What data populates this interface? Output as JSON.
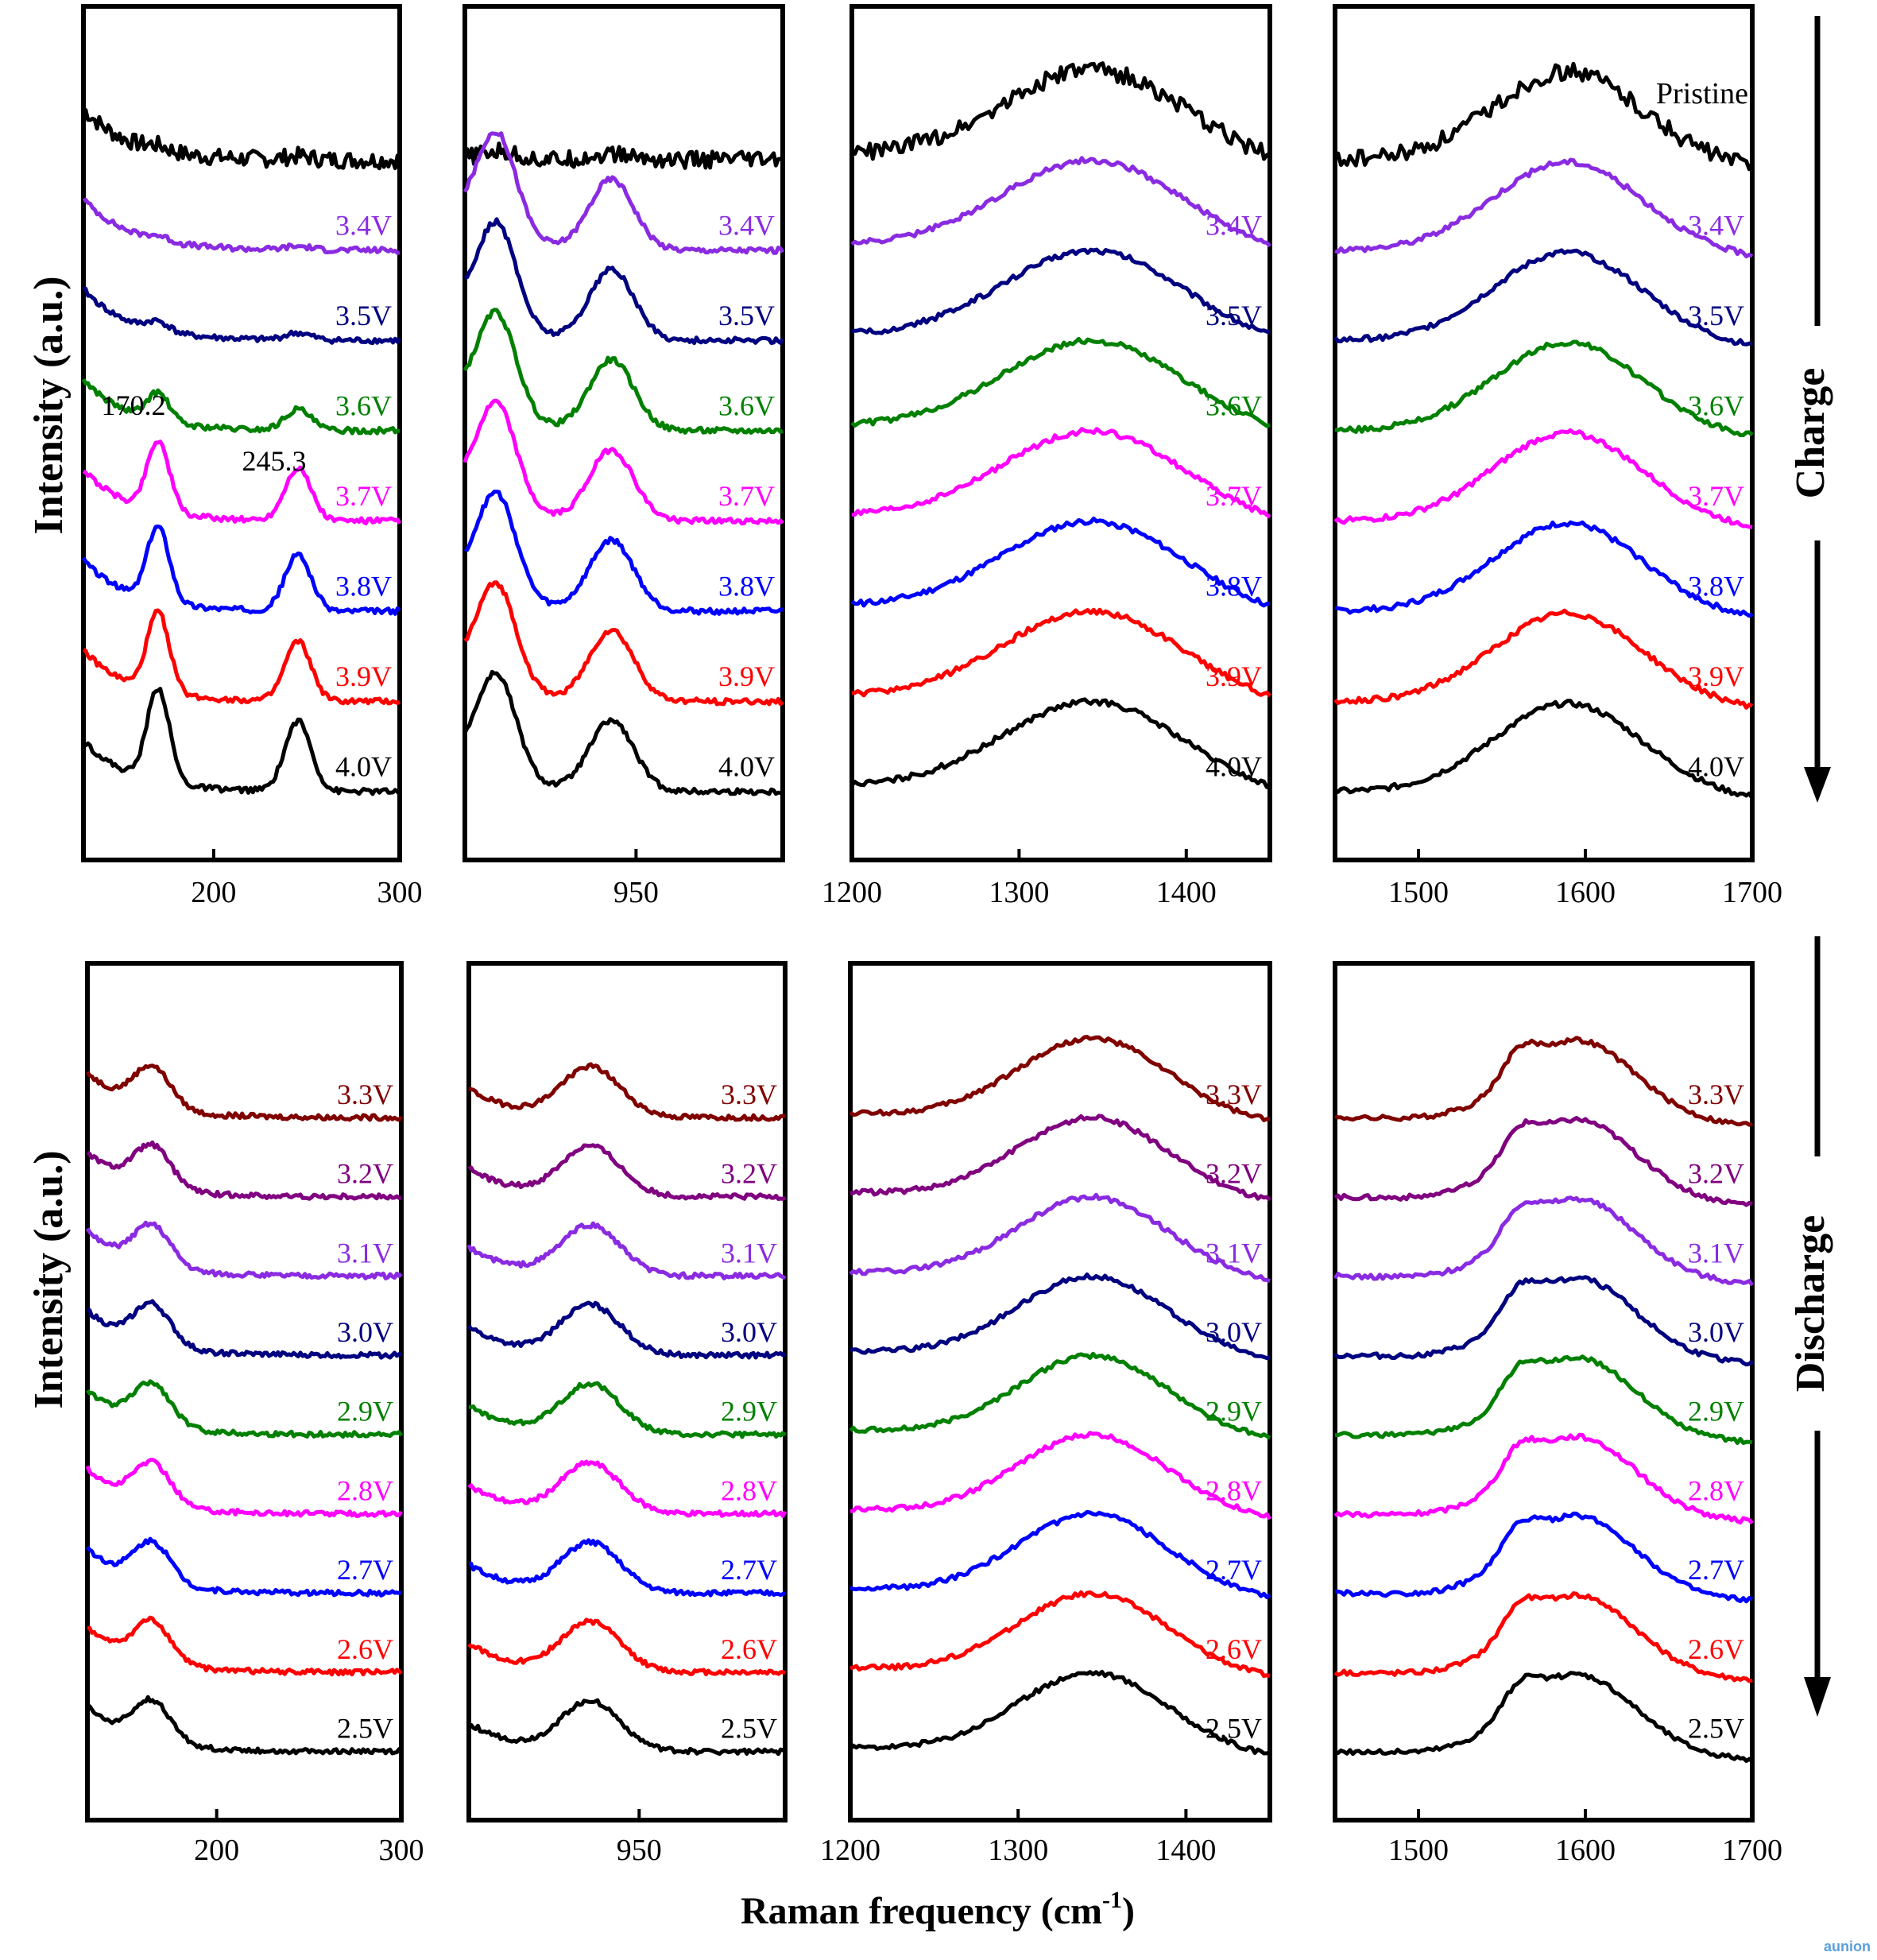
{
  "figure": {
    "ylabel": "Intensity (a.u.)",
    "xlabel_main": "Raman frequency (cm",
    "xlabel_sup": "-1",
    "xlabel_close": ")",
    "charge_label": "Charge",
    "discharge_label": "Discharge",
    "pristine_label": "Pristine",
    "peak_label_1": "170.2",
    "peak_label_2": "245.3",
    "watermark": "aunion"
  },
  "colors": {
    "Pristine": "#000000",
    "4.0V": "#000000",
    "3.9V": "#ff0000",
    "3.8V": "#0000ff",
    "3.7V": "#ff00ff",
    "3.6V": "#008000",
    "3.5V": "#000080",
    "3.4V": "#8a2be2",
    "3.3V": "#800000",
    "3.2V": "#800080",
    "3.1V": "#8a2be2",
    "3.0V": "#000080",
    "2.9V": "#008000",
    "2.8V": "#ff00ff",
    "2.7V": "#0000ff",
    "2.6V": "#ff0000",
    "2.5V": "#000000"
  },
  "chart_data": [
    {
      "type": "line",
      "panel": "charge-1",
      "xlim": [
        130,
        300
      ],
      "xticks": [
        200,
        300
      ],
      "series_order": [
        "Pristine",
        "3.4V",
        "3.5V",
        "3.6V",
        "3.7V",
        "3.8V",
        "3.9V",
        "4.0V"
      ],
      "peaks": [
        {
          "x": 170.2,
          "h": 1.0,
          "w": 6
        },
        {
          "x": 245.3,
          "h": 0.75,
          "w": 7
        }
      ],
      "growth": [
        0.05,
        0.1,
        0.3,
        0.75,
        0.8,
        0.85,
        1.0
      ]
    },
    {
      "type": "line",
      "panel": "charge-2",
      "xlim": [
        880,
        1010
      ],
      "xticks": [
        950
      ],
      "series_order": [
        "Pristine",
        "3.4V",
        "3.5V",
        "3.6V",
        "3.7V",
        "3.8V",
        "3.9V",
        "4.0V"
      ],
      "peaks": [
        {
          "x": 893,
          "h": 1.1,
          "w": 8
        },
        {
          "x": 940,
          "h": 0.75,
          "w": 9
        }
      ]
    },
    {
      "type": "line",
      "panel": "charge-3",
      "xlim": [
        1200,
        1450
      ],
      "xticks": [
        1200,
        1300,
        1400
      ],
      "series_order": [
        "Pristine",
        "3.4V",
        "3.5V",
        "3.6V",
        "3.7V",
        "3.8V",
        "3.9V",
        "4.0V"
      ],
      "peaks": [
        {
          "x": 1345,
          "h": 1.0,
          "w": 55
        }
      ]
    },
    {
      "type": "line",
      "panel": "charge-4",
      "xlim": [
        1450,
        1700
      ],
      "xticks": [
        1500,
        1600,
        1700
      ],
      "series_order": [
        "Pristine",
        "3.4V",
        "3.5V",
        "3.6V",
        "3.7V",
        "3.8V",
        "3.9V",
        "4.0V"
      ],
      "peaks": [
        {
          "x": 1590,
          "h": 1.0,
          "w": 45
        }
      ]
    },
    {
      "type": "line",
      "panel": "discharge-1",
      "xlim": [
        130,
        300
      ],
      "xticks": [
        200,
        300
      ],
      "series_order": [
        "3.3V",
        "3.2V",
        "3.1V",
        "3.0V",
        "2.9V",
        "2.8V",
        "2.7V",
        "2.6V",
        "2.5V"
      ],
      "peaks": [
        {
          "x": 165,
          "h": 0.5,
          "w": 10
        }
      ]
    },
    {
      "type": "line",
      "panel": "discharge-2",
      "xlim": [
        880,
        1010
      ],
      "xticks": [
        950
      ],
      "series_order": [
        "3.3V",
        "3.2V",
        "3.1V",
        "3.0V",
        "2.9V",
        "2.8V",
        "2.7V",
        "2.6V",
        "2.5V"
      ],
      "peaks": [
        {
          "x": 930,
          "h": 0.6,
          "w": 12
        }
      ]
    },
    {
      "type": "line",
      "panel": "discharge-3",
      "xlim": [
        1200,
        1450
      ],
      "xticks": [
        1200,
        1300,
        1400
      ],
      "series_order": [
        "3.3V",
        "3.2V",
        "3.1V",
        "3.0V",
        "2.9V",
        "2.8V",
        "2.7V",
        "2.6V",
        "2.5V"
      ],
      "peaks": [
        {
          "x": 1345,
          "h": 1.0,
          "w": 45
        }
      ]
    },
    {
      "type": "line",
      "panel": "discharge-4",
      "xlim": [
        1450,
        1700
      ],
      "xticks": [
        1500,
        1600,
        1700
      ],
      "series_order": [
        "3.3V",
        "3.2V",
        "3.1V",
        "3.0V",
        "2.9V",
        "2.8V",
        "2.7V",
        "2.6V",
        "2.5V"
      ],
      "peaks": [
        {
          "x": 1595,
          "h": 1.0,
          "w": 35
        },
        {
          "x": 1560,
          "h": 0.3,
          "w": 10
        }
      ]
    }
  ]
}
